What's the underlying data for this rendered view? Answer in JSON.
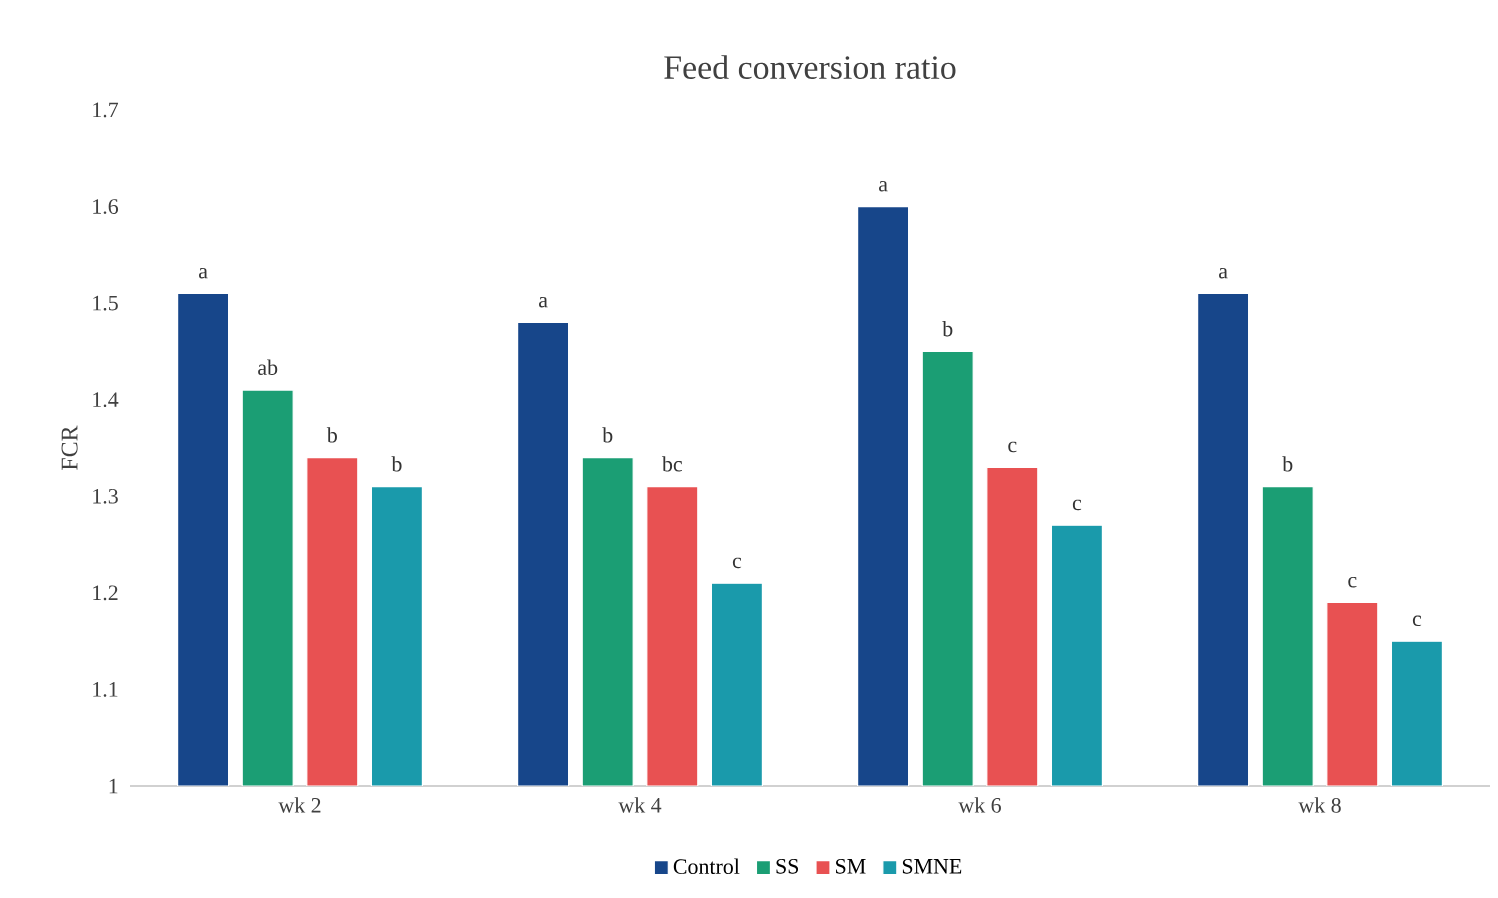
{
  "chart_data": {
    "type": "bar",
    "title": "Feed conversion ratio",
    "ylabel": "FCR",
    "categories": [
      "wk 2",
      "wk 4",
      "wk 6",
      "wk 8"
    ],
    "series": [
      {
        "name": "Control",
        "color": "#17468a",
        "values": [
          1.51,
          1.48,
          1.6,
          1.51
        ]
      },
      {
        "name": "SS",
        "color": "#1b9e74",
        "values": [
          1.41,
          1.34,
          1.45,
          1.31
        ]
      },
      {
        "name": "SM",
        "color": "#e85152",
        "values": [
          1.34,
          1.31,
          1.33,
          1.19
        ]
      },
      {
        "name": "SMNE",
        "color": "#1a9aab",
        "values": [
          1.31,
          1.21,
          1.27,
          1.15
        ]
      }
    ],
    "ylim": [
      1,
      1.7
    ],
    "yticks": [
      1,
      1.1,
      1.2,
      1.3,
      1.4,
      1.5,
      1.6,
      1.7
    ],
    "grid": false,
    "legend": "bottom",
    "annotations": [
      "a",
      "ab",
      "b",
      "b",
      "a",
      "b",
      "bc",
      "c",
      "a",
      "b",
      "c",
      "c",
      "a",
      "b",
      "c",
      "c"
    ]
  }
}
